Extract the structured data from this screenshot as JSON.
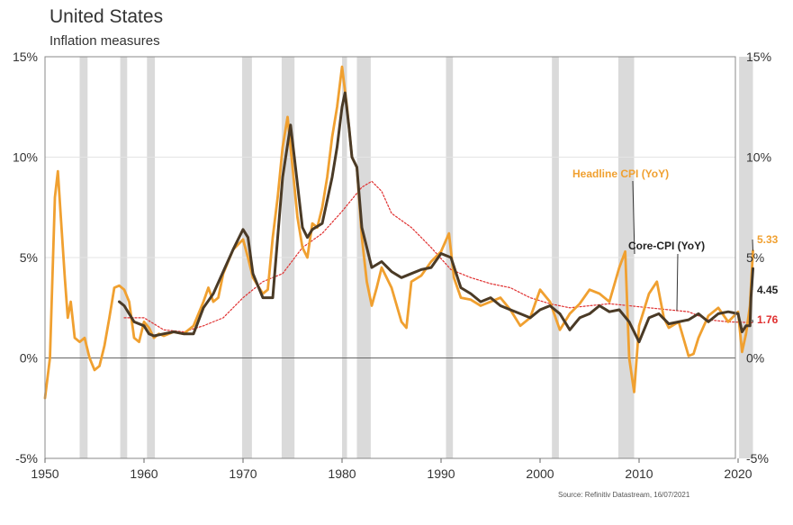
{
  "header": {
    "title": "United States",
    "subtitle": "Inflation measures"
  },
  "source": "Source: Refinitiv Datastream, 16/07/2021",
  "colors": {
    "headline": "#F0A030",
    "core": "#4A3A26",
    "red": "#E03030",
    "recession": "#DADADA"
  },
  "chart_data": {
    "type": "line",
    "x_range": [
      1950,
      2022
    ],
    "ylim": [
      -5,
      15
    ],
    "y_ticks": [
      "-5%",
      "0%",
      "5%",
      "10%",
      "15%"
    ],
    "y_tick_values": [
      -5,
      0,
      5,
      10,
      15
    ],
    "x_ticks": [
      "1950",
      "1960",
      "1970",
      "1980",
      "1990",
      "2000",
      "2010",
      "2020"
    ],
    "x_tick_values": [
      1950,
      1960,
      1970,
      1980,
      1990,
      2000,
      2010,
      2020
    ],
    "grid": true,
    "recessions": [
      [
        1953.5,
        1954.3
      ],
      [
        1957.6,
        1958.3
      ],
      [
        1960.3,
        1961.1
      ],
      [
        1969.9,
        1970.9
      ],
      [
        1973.9,
        1975.2
      ],
      [
        1980.0,
        1980.5
      ],
      [
        1981.5,
        1982.9
      ],
      [
        1990.5,
        1991.2
      ],
      [
        2001.2,
        2001.9
      ],
      [
        2007.9,
        2009.5
      ],
      [
        2020.1,
        2021.5
      ]
    ],
    "series": [
      {
        "name": "Headline CPI (YoY)",
        "color": "#F0A030",
        "end_label": "5.33",
        "points": [
          [
            1950.0,
            -2.0
          ],
          [
            1950.5,
            0.0
          ],
          [
            1951.0,
            8.0
          ],
          [
            1951.3,
            9.3
          ],
          [
            1951.6,
            7.0
          ],
          [
            1952.0,
            4.0
          ],
          [
            1952.3,
            2.0
          ],
          [
            1952.6,
            2.8
          ],
          [
            1953.0,
            1.0
          ],
          [
            1953.5,
            0.8
          ],
          [
            1954.0,
            1.0
          ],
          [
            1954.5,
            0.0
          ],
          [
            1955.0,
            -0.6
          ],
          [
            1955.5,
            -0.4
          ],
          [
            1956.0,
            0.6
          ],
          [
            1956.5,
            2.0
          ],
          [
            1957.0,
            3.5
          ],
          [
            1957.5,
            3.6
          ],
          [
            1958.0,
            3.4
          ],
          [
            1958.5,
            2.8
          ],
          [
            1959.0,
            1.0
          ],
          [
            1959.5,
            0.8
          ],
          [
            1960.0,
            1.8
          ],
          [
            1960.5,
            1.5
          ],
          [
            1961.0,
            1.0
          ],
          [
            1961.5,
            1.2
          ],
          [
            1962.0,
            1.1
          ],
          [
            1963.0,
            1.3
          ],
          [
            1964.0,
            1.2
          ],
          [
            1965.0,
            1.6
          ],
          [
            1966.0,
            2.8
          ],
          [
            1966.5,
            3.5
          ],
          [
            1967.0,
            2.8
          ],
          [
            1967.5,
            3.0
          ],
          [
            1968.0,
            4.2
          ],
          [
            1969.0,
            5.4
          ],
          [
            1970.0,
            5.9
          ],
          [
            1970.5,
            5.0
          ],
          [
            1971.0,
            4.0
          ],
          [
            1972.0,
            3.2
          ],
          [
            1972.5,
            3.4
          ],
          [
            1973.0,
            6.0
          ],
          [
            1973.5,
            8.0
          ],
          [
            1974.0,
            10.5
          ],
          [
            1974.5,
            12.0
          ],
          [
            1975.0,
            9.5
          ],
          [
            1975.5,
            7.0
          ],
          [
            1976.0,
            5.5
          ],
          [
            1976.5,
            5.0
          ],
          [
            1977.0,
            6.7
          ],
          [
            1977.5,
            6.5
          ],
          [
            1978.0,
            7.5
          ],
          [
            1978.5,
            9.0
          ],
          [
            1979.0,
            11.0
          ],
          [
            1979.5,
            12.5
          ],
          [
            1980.0,
            14.5
          ],
          [
            1980.5,
            12.5
          ],
          [
            1981.0,
            10.0
          ],
          [
            1981.5,
            9.5
          ],
          [
            1982.0,
            6.0
          ],
          [
            1982.5,
            3.8
          ],
          [
            1983.0,
            2.6
          ],
          [
            1983.5,
            3.5
          ],
          [
            1984.0,
            4.5
          ],
          [
            1985.0,
            3.5
          ],
          [
            1986.0,
            1.8
          ],
          [
            1986.5,
            1.5
          ],
          [
            1987.0,
            3.8
          ],
          [
            1988.0,
            4.1
          ],
          [
            1989.0,
            4.8
          ],
          [
            1990.0,
            5.3
          ],
          [
            1990.8,
            6.2
          ],
          [
            1991.3,
            4.0
          ],
          [
            1992.0,
            3.0
          ],
          [
            1993.0,
            2.9
          ],
          [
            1994.0,
            2.6
          ],
          [
            1995.0,
            2.8
          ],
          [
            1996.0,
            3.0
          ],
          [
            1997.0,
            2.4
          ],
          [
            1998.0,
            1.6
          ],
          [
            1999.0,
            2.0
          ],
          [
            2000.0,
            3.4
          ],
          [
            2001.0,
            2.8
          ],
          [
            2002.0,
            1.4
          ],
          [
            2003.0,
            2.2
          ],
          [
            2004.0,
            2.7
          ],
          [
            2005.0,
            3.4
          ],
          [
            2006.0,
            3.2
          ],
          [
            2007.0,
            2.8
          ],
          [
            2008.0,
            4.5
          ],
          [
            2008.6,
            5.3
          ],
          [
            2009.0,
            0.0
          ],
          [
            2009.5,
            -1.7
          ],
          [
            2010.0,
            1.6
          ],
          [
            2011.0,
            3.2
          ],
          [
            2011.8,
            3.8
          ],
          [
            2012.5,
            2.0
          ],
          [
            2013.0,
            1.5
          ],
          [
            2014.0,
            1.8
          ],
          [
            2015.0,
            0.1
          ],
          [
            2015.5,
            0.2
          ],
          [
            2016.0,
            1.0
          ],
          [
            2017.0,
            2.1
          ],
          [
            2018.0,
            2.5
          ],
          [
            2019.0,
            1.8
          ],
          [
            2020.0,
            2.3
          ],
          [
            2020.4,
            0.3
          ],
          [
            2020.8,
            1.2
          ],
          [
            2021.2,
            2.6
          ],
          [
            2021.5,
            5.33
          ]
        ]
      },
      {
        "name": "Core-CPI (YoY)",
        "color": "#4A3A26",
        "end_label": "4.45",
        "points": [
          [
            1957.5,
            2.8
          ],
          [
            1958.0,
            2.6
          ],
          [
            1959.0,
            1.8
          ],
          [
            1960.0,
            1.6
          ],
          [
            1960.5,
            1.2
          ],
          [
            1961.0,
            1.1
          ],
          [
            1962.0,
            1.2
          ],
          [
            1963.0,
            1.3
          ],
          [
            1964.0,
            1.2
          ],
          [
            1965.0,
            1.2
          ],
          [
            1966.0,
            2.5
          ],
          [
            1967.0,
            3.2
          ],
          [
            1968.0,
            4.3
          ],
          [
            1969.0,
            5.4
          ],
          [
            1970.0,
            6.4
          ],
          [
            1970.5,
            6.0
          ],
          [
            1971.0,
            4.2
          ],
          [
            1972.0,
            3.0
          ],
          [
            1973.0,
            3.0
          ],
          [
            1974.0,
            9.0
          ],
          [
            1974.8,
            11.6
          ],
          [
            1975.3,
            9.5
          ],
          [
            1976.0,
            6.5
          ],
          [
            1976.5,
            6.0
          ],
          [
            1977.0,
            6.4
          ],
          [
            1978.0,
            6.7
          ],
          [
            1979.0,
            9.0
          ],
          [
            1979.5,
            10.5
          ],
          [
            1980.0,
            12.5
          ],
          [
            1980.3,
            13.2
          ],
          [
            1980.7,
            11.5
          ],
          [
            1981.0,
            10.0
          ],
          [
            1981.5,
            9.5
          ],
          [
            1982.0,
            6.5
          ],
          [
            1983.0,
            4.5
          ],
          [
            1984.0,
            4.8
          ],
          [
            1985.0,
            4.3
          ],
          [
            1986.0,
            4.0
          ],
          [
            1987.0,
            4.2
          ],
          [
            1988.0,
            4.4
          ],
          [
            1989.0,
            4.5
          ],
          [
            1990.0,
            5.2
          ],
          [
            1991.0,
            5.0
          ],
          [
            1992.0,
            3.5
          ],
          [
            1993.0,
            3.2
          ],
          [
            1994.0,
            2.8
          ],
          [
            1995.0,
            3.0
          ],
          [
            1996.0,
            2.6
          ],
          [
            1997.0,
            2.4
          ],
          [
            1998.0,
            2.2
          ],
          [
            1999.0,
            2.0
          ],
          [
            2000.0,
            2.4
          ],
          [
            2001.0,
            2.6
          ],
          [
            2002.0,
            2.2
          ],
          [
            2003.0,
            1.4
          ],
          [
            2004.0,
            2.0
          ],
          [
            2005.0,
            2.2
          ],
          [
            2006.0,
            2.6
          ],
          [
            2007.0,
            2.3
          ],
          [
            2008.0,
            2.4
          ],
          [
            2009.0,
            1.8
          ],
          [
            2010.0,
            0.8
          ],
          [
            2011.0,
            2.0
          ],
          [
            2012.0,
            2.2
          ],
          [
            2013.0,
            1.7
          ],
          [
            2014.0,
            1.8
          ],
          [
            2015.0,
            1.9
          ],
          [
            2016.0,
            2.2
          ],
          [
            2017.0,
            1.8
          ],
          [
            2018.0,
            2.2
          ],
          [
            2019.0,
            2.3
          ],
          [
            2020.0,
            2.2
          ],
          [
            2020.4,
            1.3
          ],
          [
            2020.8,
            1.6
          ],
          [
            2021.2,
            1.6
          ],
          [
            2021.3,
            3.0
          ],
          [
            2021.5,
            4.45
          ]
        ]
      },
      {
        "name": "",
        "color": "#E03030",
        "dashed": true,
        "end_label": "1.76",
        "points": [
          [
            1958.0,
            2.0
          ],
          [
            1960.0,
            2.0
          ],
          [
            1962.0,
            1.4
          ],
          [
            1964.0,
            1.3
          ],
          [
            1966.0,
            1.6
          ],
          [
            1968.0,
            2.0
          ],
          [
            1970.0,
            3.0
          ],
          [
            1972.0,
            3.8
          ],
          [
            1974.0,
            4.2
          ],
          [
            1976.0,
            5.5
          ],
          [
            1978.0,
            6.2
          ],
          [
            1980.0,
            7.3
          ],
          [
            1982.0,
            8.5
          ],
          [
            1983.0,
            8.8
          ],
          [
            1984.0,
            8.3
          ],
          [
            1985.0,
            7.2
          ],
          [
            1987.0,
            6.5
          ],
          [
            1989.0,
            5.5
          ],
          [
            1991.0,
            4.4
          ],
          [
            1993.0,
            4.0
          ],
          [
            1995.0,
            3.7
          ],
          [
            1997.0,
            3.5
          ],
          [
            1999.0,
            3.0
          ],
          [
            2001.0,
            2.7
          ],
          [
            2003.0,
            2.5
          ],
          [
            2005.0,
            2.6
          ],
          [
            2007.0,
            2.7
          ],
          [
            2009.0,
            2.6
          ],
          [
            2011.0,
            2.5
          ],
          [
            2013.0,
            2.4
          ],
          [
            2015.0,
            2.3
          ],
          [
            2017.0,
            1.9
          ],
          [
            2019.0,
            1.8
          ],
          [
            2021.5,
            1.76
          ]
        ]
      }
    ],
    "labels": {
      "headline": "Headline CPI (YoY)",
      "core": "Core-CPI (YoY)"
    }
  }
}
